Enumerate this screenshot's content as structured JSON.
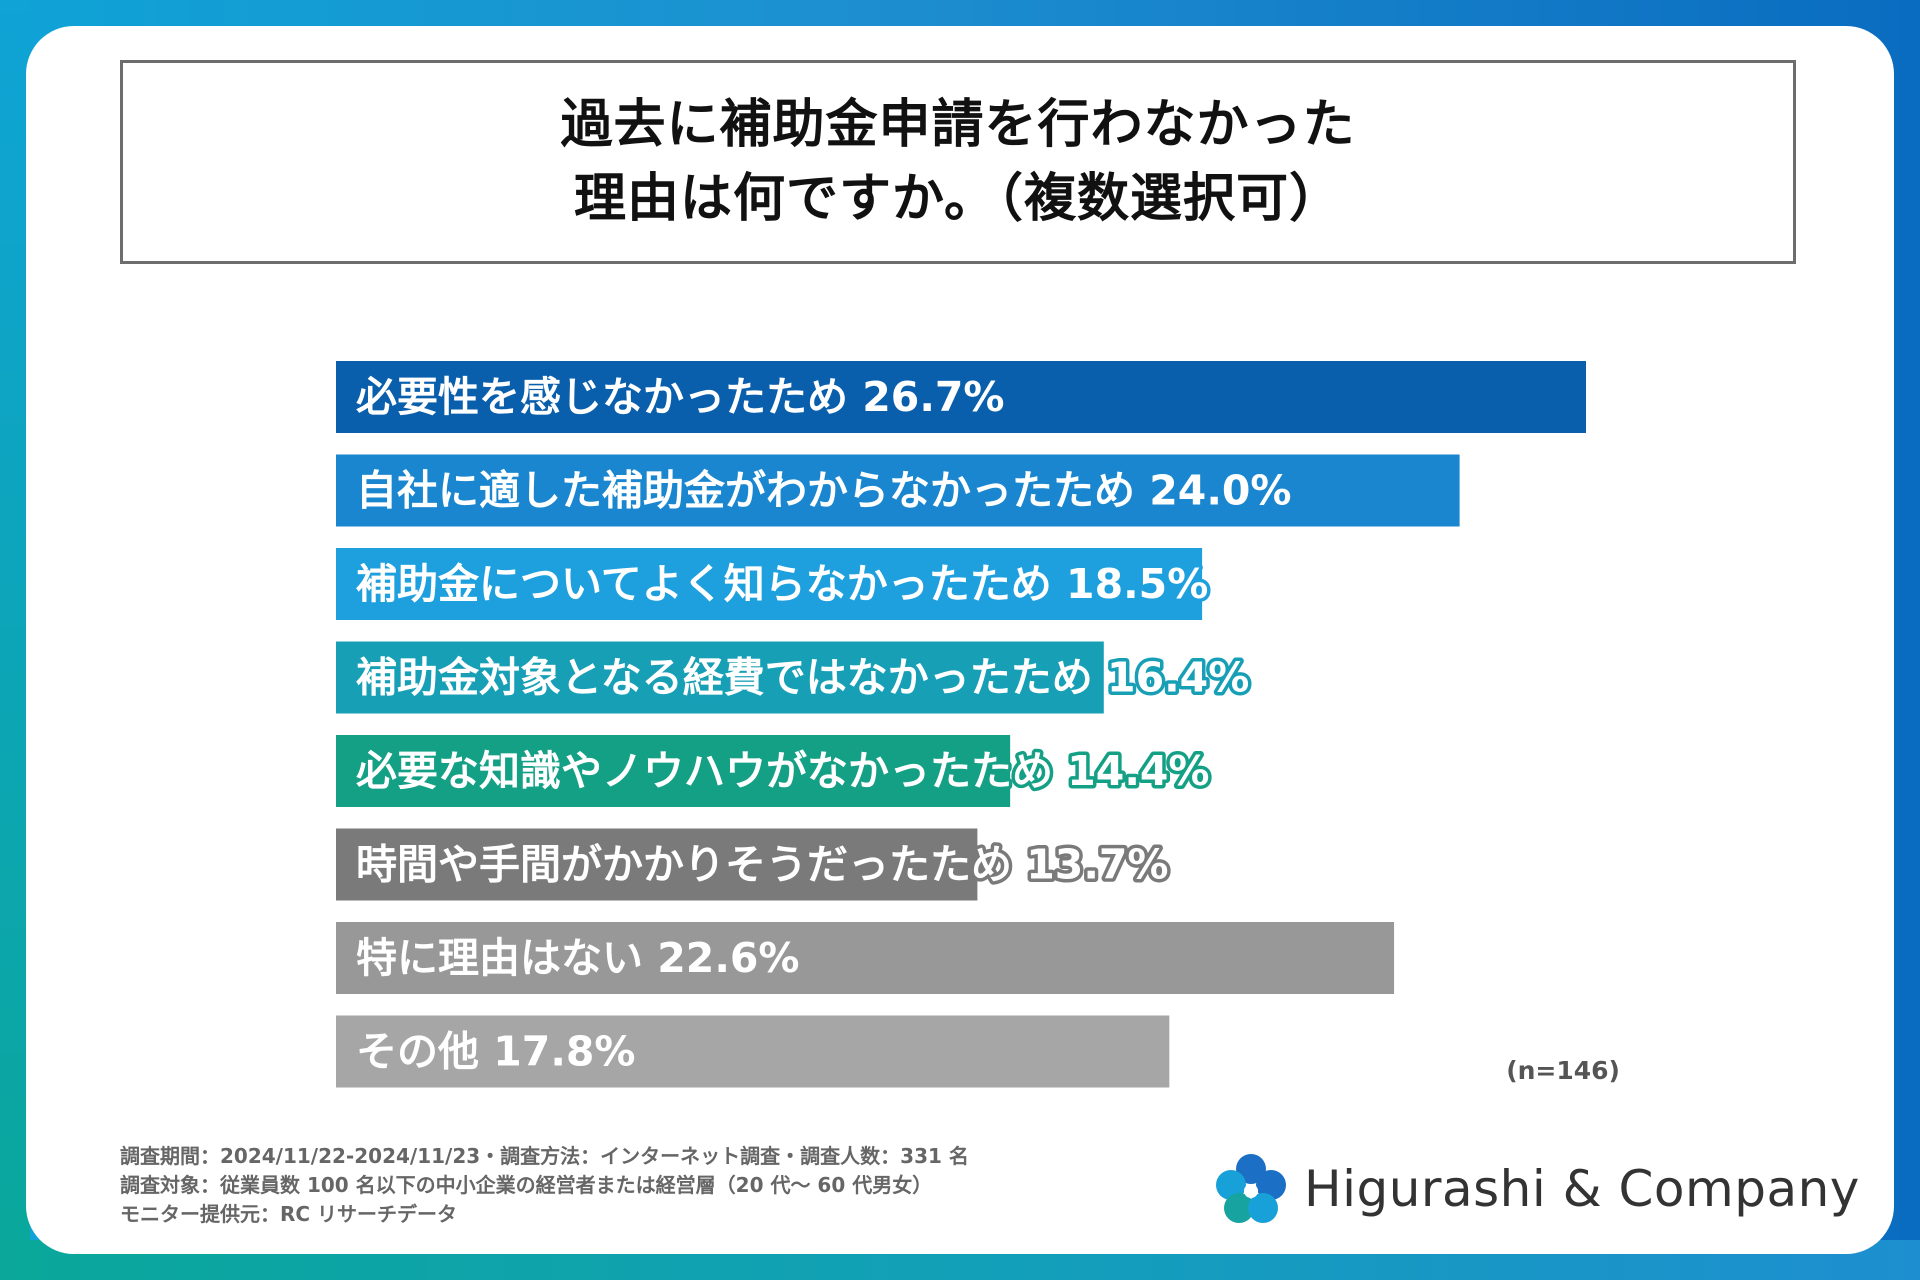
{
  "title": {
    "line1": "過去に補助金申請を行わなかった",
    "line2": "理由は何ですか。（複数選択可）"
  },
  "chart_data": {
    "type": "bar",
    "orientation": "horizontal",
    "categories": [
      "必要性を感じなかったため",
      "自社に適した補助金がわからなかったため",
      "補助金についてよく知らなかったため",
      "補助金対象となる経費ではなかったため",
      "必要な知識やノウハウがなかったため",
      "時間や手間がかかりそうだったため",
      "特に理由はない",
      "その他"
    ],
    "values": [
      26.7,
      24.0,
      18.5,
      16.4,
      14.4,
      13.7,
      22.6,
      17.8
    ],
    "value_labels": [
      "26.7%",
      "24.0%",
      "18.5%",
      "16.4%",
      "14.4%",
      "13.7%",
      "22.6%",
      "17.8%"
    ],
    "colors": [
      "#0a5fac",
      "#1a86cf",
      "#1ea0de",
      "#179fb6",
      "#14a085",
      "#7a7a7a",
      "#989898",
      "#a6a6a6"
    ],
    "xlim": [
      0,
      26.7
    ],
    "grid": false,
    "legend": "none",
    "n_label": "(n=146)"
  },
  "footer": {
    "line1": "調査期間：2024/11/22-2024/11/23・調査方法：インターネット調査・調査人数：331 名",
    "line2": "調査対象：従業員数 100 名以下の中小企業の経営者または経営層（20 代～ 60 代男女）",
    "line3": "モニター提供元：RC リサーチデータ"
  },
  "logo": {
    "text": "Higurashi & Company",
    "icon": "blue-flower-icon",
    "colors": [
      "#1b6fc4",
      "#18a0d8",
      "#17a3a0"
    ]
  }
}
